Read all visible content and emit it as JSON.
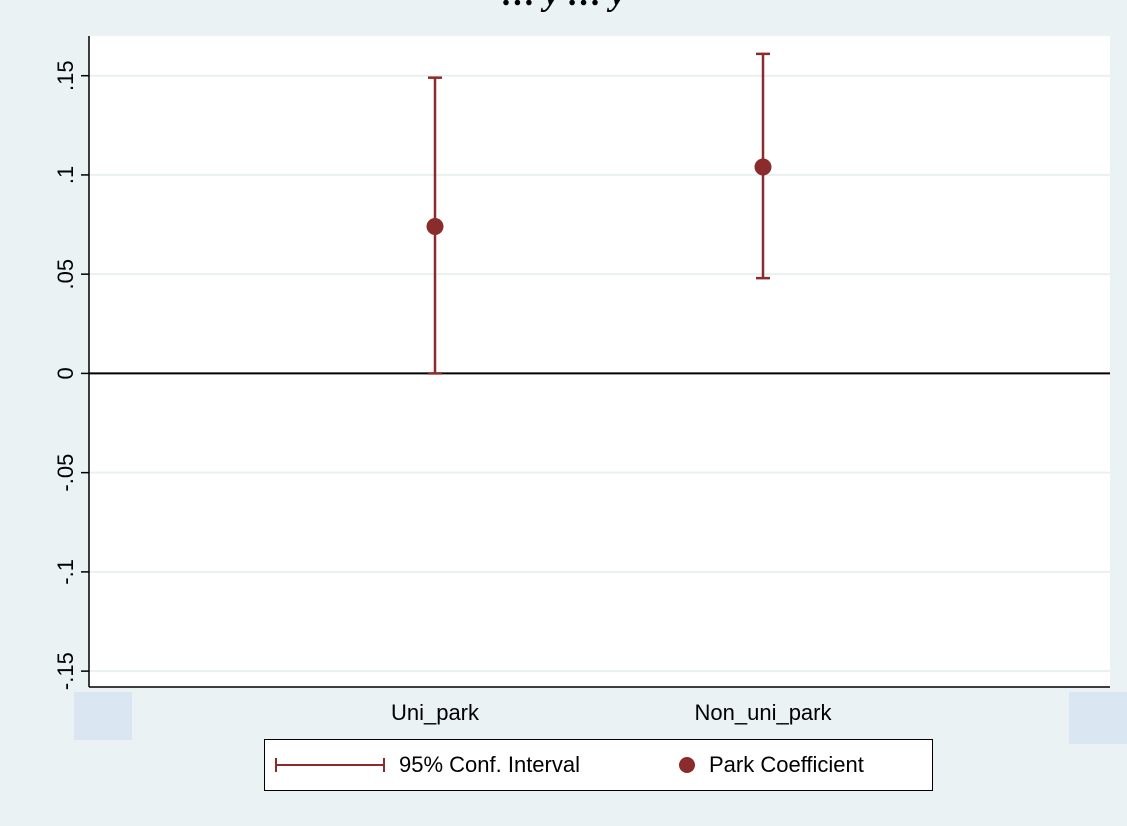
{
  "title": "… y … y",
  "chart_data": {
    "type": "scatter",
    "categories": [
      "Uni_park",
      "Non_uni_park"
    ],
    "series": [
      {
        "name": "Park Coefficient",
        "values": [
          0.074,
          0.104
        ]
      },
      {
        "name": "95% Conf. Interval",
        "lower": [
          0.0,
          0.048
        ],
        "upper": [
          0.149,
          0.161
        ]
      }
    ],
    "y_ticks": [
      0.15,
      0.1,
      0.05,
      0,
      -0.05,
      -0.1,
      -0.15
    ],
    "y_tick_labels": [
      ".15",
      ".1",
      ".05",
      "0",
      "-.05",
      "-.1",
      "-.15"
    ],
    "ylim": [
      -0.158,
      0.17
    ],
    "reference_line_y": 0,
    "grid": true,
    "legend_position": "bottom",
    "colors": {
      "marker": "#8b2c2c",
      "grid": "#e8f0f1",
      "background": "#eaf2f3"
    }
  },
  "legend": {
    "ci_label": "95% Conf. Interval",
    "point_label": "Park Coefficient"
  }
}
